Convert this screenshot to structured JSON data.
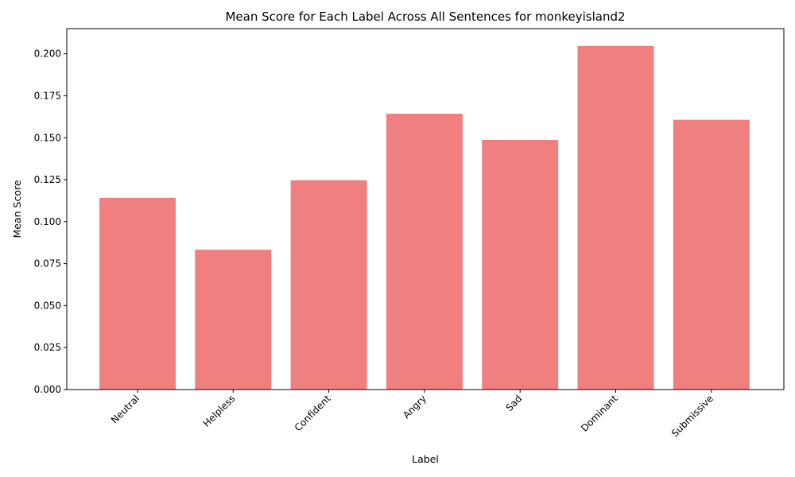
{
  "chart_data": {
    "type": "bar",
    "title": "Mean Score for Each Label Across All Sentences for monkeyisland2",
    "xlabel": "Label",
    "ylabel": "Mean Score",
    "categories": [
      "Neutral",
      "Helpless",
      "Confident",
      "Angry",
      "Sad",
      "Dominant",
      "Submissive"
    ],
    "values": [
      0.1142,
      0.0833,
      0.1247,
      0.1643,
      0.1487,
      0.2047,
      0.1607
    ],
    "ylim": [
      0,
      0.215
    ],
    "yticks": [
      0.0,
      0.025,
      0.05,
      0.075,
      0.1,
      0.125,
      0.15,
      0.175,
      0.2
    ],
    "ytick_labels": [
      "0.000",
      "0.025",
      "0.050",
      "0.075",
      "0.100",
      "0.125",
      "0.150",
      "0.175",
      "0.200"
    ],
    "bar_color": "#f08080",
    "grid": false,
    "legend": "none"
  }
}
